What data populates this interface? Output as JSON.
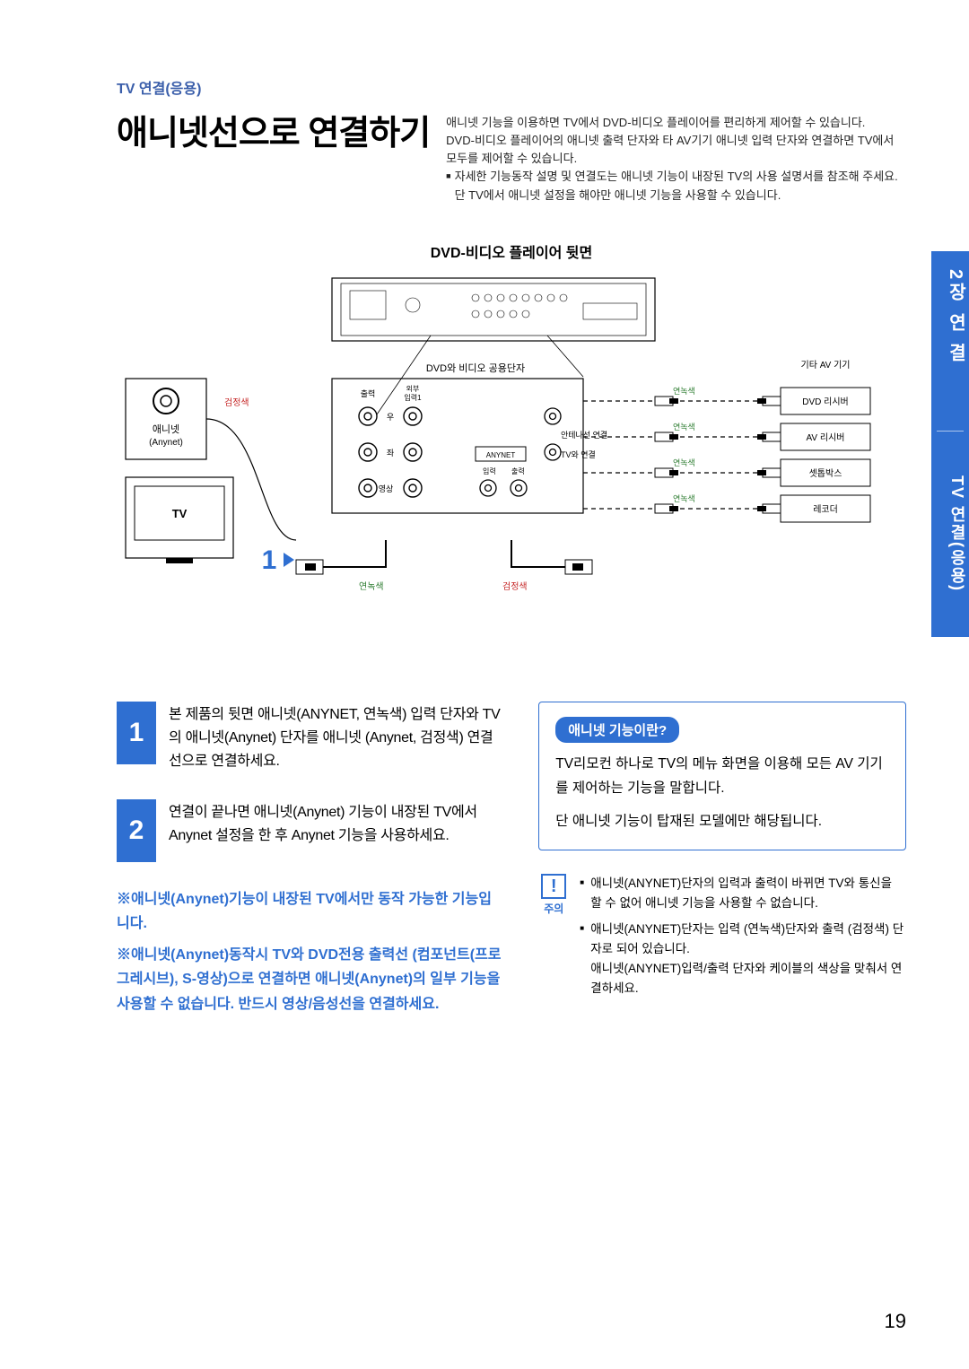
{
  "breadcrumb": "TV 연결(응용)",
  "title": "애니넷선으로 연결하기",
  "intro_lines": [
    "애니넷 기능을 이용하면 TV에서 DVD-비디오 플레이어를 편리하게 제어할 수 있습니다.",
    "DVD-비디오 플레이어의 애니넷 출력 단자와 타 AV기기 애니넷 입력 단자와 연결하면 TV에서 모두를 제어할 수 있습니다."
  ],
  "intro_bullet": "자세한 기능동작 설명 및 연결도는 애니넷 기능이 내장된 TV의 사용 설명서를 참조해 주세요. 단 TV에서 애니넷 설정을 해야만 애니넷 기능을 사용할 수 있습니다.",
  "diagram": {
    "caption": "DVD-비디오 플레이어 뒷면",
    "labels": {
      "anynet_box_top": "애니넷",
      "anynet_box_sub": "(Anynet)",
      "tv_box": "TV",
      "shared_terminal": "DVD와 비디오 공용단자",
      "other_av": "기타 AV 기기",
      "devices": [
        "DVD 리시버",
        "AV 리시버",
        "셋톱박스",
        "레코더"
      ],
      "out_label": "출력",
      "in_label": "입력",
      "ext_in": "외부\n입력1",
      "anynet_conn": "안테나선 연결",
      "tv_conn": "TV와 연결",
      "anynet_badge": "ANYNET",
      "video": "영상",
      "left": "좌",
      "right": "우",
      "green": "연녹색",
      "black": "검정색",
      "step_marker": "1▸"
    },
    "colors": {
      "blue": "#2f6fd1",
      "red_text": "#c62828",
      "green_text": "#2e7d32",
      "line": "#000000",
      "dash": "#000000",
      "bg": "#ffffff"
    }
  },
  "steps": [
    {
      "num": "1",
      "text": "본 제품의 뒷면 애니넷(ANYNET, 연녹색) 입력 단자와 TV의 애니넷(Anynet) 단자를 애니넷 (Anynet, 검정색) 연결선으로 연결하세요."
    },
    {
      "num": "2",
      "text": "연결이 끝나면 애니넷(Anynet) 기능이 내장된 TV에서 Anynet 설정을 한 후 Anynet 기능을 사용하세요."
    }
  ],
  "notes": [
    "※애니넷(Anynet)기능이 내장된 TV에서만 동작 가능한 기능입니다.",
    "※애니넷(Anynet)동작시 TV와 DVD전용 출력선 (컴포넌트(프로그레시브), S-영상)으로 연결하면 애니넷(Anynet)의 일부 기능을 사용할 수 없습니다. 반드시 영상/음성선을 연결하세요."
  ],
  "info": {
    "title": "애니넷 기능이란?",
    "body": [
      "TV리모컨 하나로 TV의 메뉴 화면을 이용해 모든 AV 기기를 제어하는 기능을 말합니다.",
      "단 애니넷 기능이 탑재된 모델에만 해당됩니다."
    ]
  },
  "caution": {
    "label": "주의",
    "items": [
      "애니넷(ANYNET)단자의 입력과 출력이 바뀌면 TV와 통신을 할 수 없어 애니넷 기능을 사용할 수 없습니다.",
      "애니넷(ANYNET)단자는 입력 (연녹색)단자와 출력 (검정색) 단자로 되어 있습니다.\n애니넷(ANYNET)입력/출력 단자와 케이블의 색상을 맞춰서 연결하세요."
    ]
  },
  "side_tab": {
    "seg1": "2장 연 결",
    "seg2": "TV 연결(응용)"
  },
  "page_number": "19"
}
